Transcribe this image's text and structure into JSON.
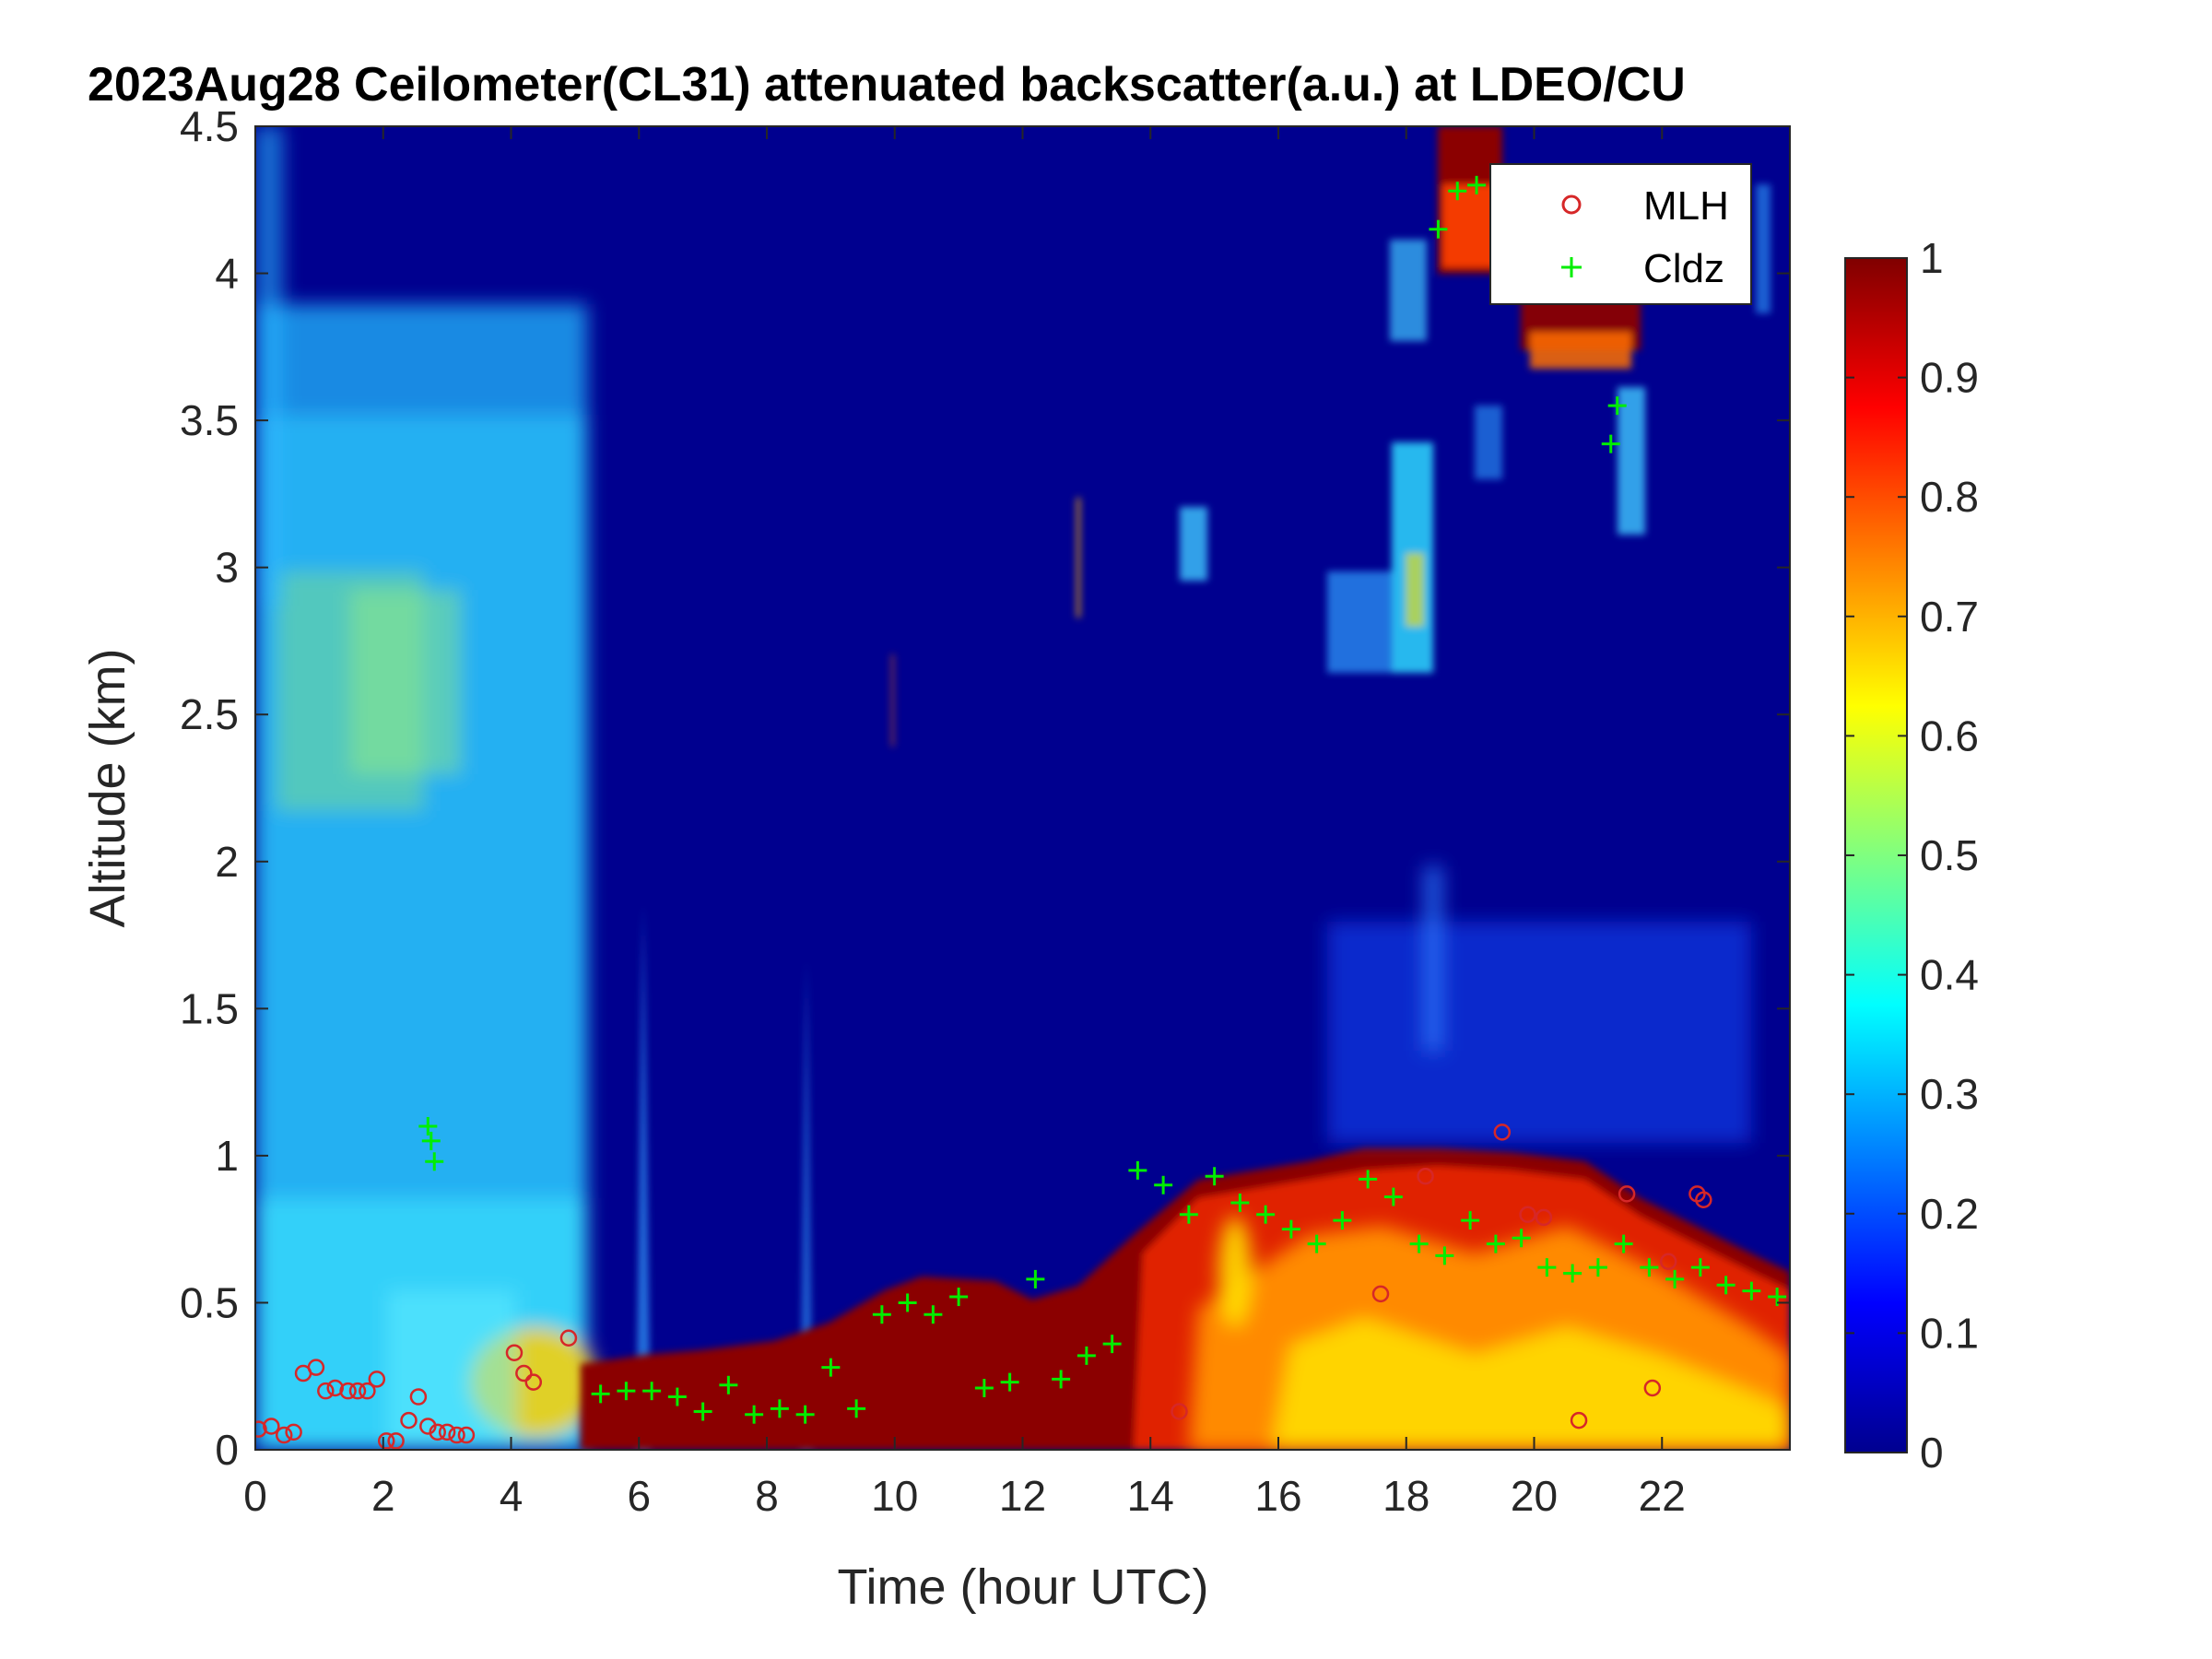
{
  "chart_data": {
    "type": "heatmap",
    "title": "2023Aug28 Ceilometer(CL31) attenuated backscatter(a.u.) at LDEO/CU",
    "xlabel": "Time (hour UTC)",
    "ylabel": "Altitude (km)",
    "xlim": [
      0,
      24
    ],
    "ylim": [
      0,
      4.5
    ],
    "x_ticks": [
      "0",
      "2",
      "4",
      "6",
      "8",
      "10",
      "12",
      "14",
      "16",
      "18",
      "20",
      "22"
    ],
    "y_ticks": [
      "0",
      "0.5",
      "1",
      "1.5",
      "2",
      "2.5",
      "3",
      "3.5",
      "4",
      "4.5"
    ],
    "colorbar": {
      "range": [
        0,
        1
      ],
      "ticks": [
        "0",
        "0.1",
        "0.2",
        "0.3",
        "0.4",
        "0.5",
        "0.6",
        "0.7",
        "0.8",
        "0.9",
        "1"
      ],
      "colormap": "jet"
    },
    "legend_position": "top-right",
    "series": [
      {
        "name": "MLH",
        "marker": "o",
        "color": "#d62728",
        "x": [
          0.05,
          0.25,
          0.45,
          0.6,
          0.75,
          0.95,
          1.1,
          1.25,
          1.45,
          1.6,
          1.75,
          1.9,
          2.05,
          2.2,
          2.4,
          2.55,
          2.7,
          2.85,
          3.0,
          3.15,
          3.3,
          4.05,
          4.2,
          4.35,
          4.9,
          14.45,
          17.6,
          18.3,
          19.5,
          19.9,
          20.15,
          20.7,
          21.45,
          21.85,
          22.1,
          22.55,
          22.65
        ],
        "y": [
          0.07,
          0.08,
          0.05,
          0.06,
          0.26,
          0.28,
          0.2,
          0.21,
          0.2,
          0.2,
          0.2,
          0.24,
          0.03,
          0.03,
          0.1,
          0.18,
          0.08,
          0.06,
          0.06,
          0.05,
          0.05,
          0.33,
          0.26,
          0.23,
          0.38,
          0.13,
          0.53,
          0.93,
          1.08,
          0.8,
          0.79,
          0.1,
          0.87,
          0.21,
          0.64,
          0.87,
          0.85
        ]
      },
      {
        "name": "Cldz",
        "marker": "+",
        "color": "#00ff00",
        "x": [
          2.7,
          2.75,
          2.8,
          5.4,
          5.8,
          6.2,
          6.6,
          7.0,
          7.4,
          7.8,
          8.2,
          8.6,
          9.0,
          9.4,
          9.8,
          10.2,
          10.6,
          11.0,
          11.4,
          11.8,
          12.2,
          12.6,
          13.0,
          13.4,
          13.8,
          14.2,
          14.6,
          15.0,
          15.4,
          15.8,
          16.2,
          16.6,
          17.0,
          17.4,
          17.8,
          18.2,
          18.6,
          19.0,
          19.4,
          19.8,
          20.2,
          20.6,
          21.0,
          21.4,
          21.8,
          22.2,
          22.6,
          23.0,
          23.4,
          23.8,
          18.5,
          18.8,
          19.1,
          21.2,
          21.3
        ],
        "y": [
          1.1,
          1.05,
          0.98,
          0.19,
          0.2,
          0.2,
          0.18,
          0.13,
          0.22,
          0.12,
          0.14,
          0.12,
          0.28,
          0.14,
          0.46,
          0.5,
          0.46,
          0.52,
          0.21,
          0.23,
          0.58,
          0.24,
          0.32,
          0.36,
          0.95,
          0.9,
          0.8,
          0.93,
          0.84,
          0.8,
          0.75,
          0.7,
          0.78,
          0.92,
          0.86,
          0.7,
          0.66,
          0.78,
          0.7,
          0.72,
          0.62,
          0.6,
          0.62,
          0.7,
          0.62,
          0.58,
          0.62,
          0.56,
          0.54,
          0.52,
          4.15,
          4.28,
          4.3,
          3.42,
          3.55
        ]
      }
    ]
  }
}
